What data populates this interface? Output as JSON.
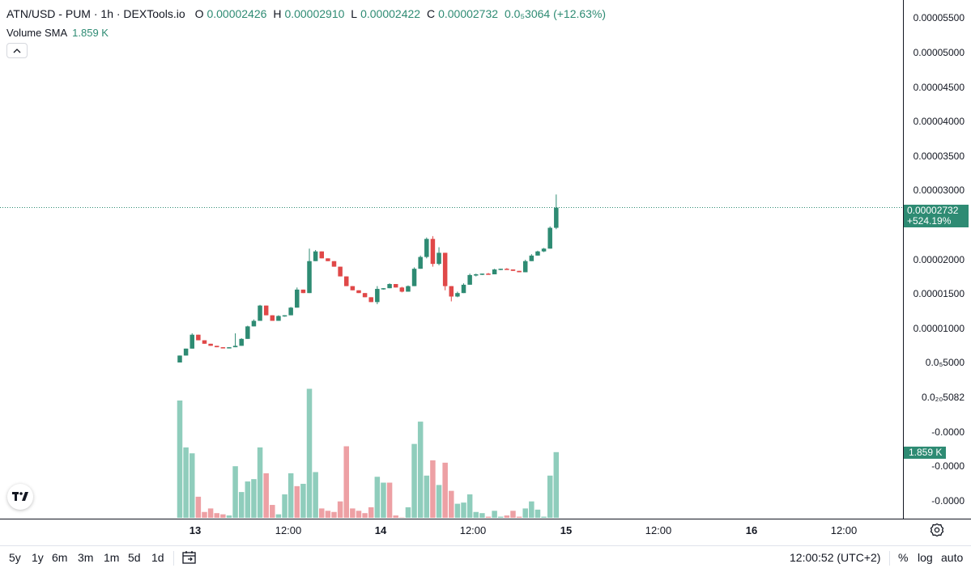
{
  "legend": {
    "title": "ATN/USD - PUM · 1h · DEXTools.io",
    "o_label": "O",
    "o_value": "0.00002426",
    "h_label": "H",
    "h_value": "0.00002910",
    "l_label": "L",
    "l_value": "0.00002422",
    "c_label": "C",
    "c_value": "0.00002732",
    "change": "0.0₅3064 (+12.63%)"
  },
  "volume_legend": {
    "label": "Volume SMA",
    "value": "1.859 K"
  },
  "price_axis": {
    "labels": [
      "0.00005500",
      "0.00005000",
      "0.00004500",
      "0.00004000",
      "0.00003500",
      "0.00003000",
      "0.00002000",
      "0.00001500",
      "0.00001000",
      "0.0₅5000",
      "0.0₂₀5082",
      "-0.0000",
      "-0.0000",
      "-0.0000"
    ],
    "last_price": "0.00002732",
    "last_change": "+524.19%",
    "volume_value": "1.859 K"
  },
  "time_axis": {
    "labels": [
      {
        "text": "13",
        "bold": true
      },
      {
        "text": "12:00",
        "bold": false
      },
      {
        "text": "14",
        "bold": true
      },
      {
        "text": "12:00",
        "bold": false
      },
      {
        "text": "15",
        "bold": true
      },
      {
        "text": "12:00",
        "bold": false
      },
      {
        "text": "16",
        "bold": true
      },
      {
        "text": "12:00",
        "bold": false
      }
    ]
  },
  "bottom_bar": {
    "ranges": [
      "5y",
      "1y",
      "6m",
      "3m",
      "1m",
      "5d",
      "1d"
    ],
    "clock": "12:00:52 (UTC+2)",
    "percent": "%",
    "log": "log",
    "auto": "auto"
  },
  "icons": {
    "logo": "tradingview-logo-icon",
    "settings": "settings-gear-icon",
    "calendar": "calendar-goto-icon",
    "collapse": "chevron-up-icon"
  },
  "colors": {
    "up": "#2e8b73",
    "down": "#e04848",
    "vol_up": "#8fcdbc",
    "vol_down": "#eda0a4",
    "accent": "#2e8b73"
  },
  "chart_data": {
    "type": "candlestick",
    "interval": "1h",
    "price_unit": "USD (×1e-5)",
    "candles": [
      {
        "o": 0.5,
        "h": 0.6,
        "l": 0.5,
        "c": 0.6
      },
      {
        "o": 0.6,
        "h": 0.7,
        "l": 0.6,
        "c": 0.7
      },
      {
        "o": 0.7,
        "h": 0.92,
        "l": 0.7,
        "c": 0.9
      },
      {
        "o": 0.9,
        "h": 0.9,
        "l": 0.82,
        "c": 0.82
      },
      {
        "o": 0.82,
        "h": 0.82,
        "l": 0.77,
        "c": 0.77
      },
      {
        "o": 0.77,
        "h": 0.77,
        "l": 0.74,
        "c": 0.74
      },
      {
        "o": 0.74,
        "h": 0.74,
        "l": 0.72,
        "c": 0.72
      },
      {
        "o": 0.72,
        "h": 0.72,
        "l": 0.71,
        "c": 0.71
      },
      {
        "o": 0.71,
        "h": 0.72,
        "l": 0.71,
        "c": 0.72
      },
      {
        "o": 0.72,
        "h": 0.92,
        "l": 0.72,
        "c": 0.74
      },
      {
        "o": 0.74,
        "h": 0.85,
        "l": 0.74,
        "c": 0.84
      },
      {
        "o": 0.84,
        "h": 1.03,
        "l": 0.84,
        "c": 1.02
      },
      {
        "o": 1.02,
        "h": 1.12,
        "l": 1.02,
        "c": 1.1
      },
      {
        "o": 1.1,
        "h": 1.33,
        "l": 1.1,
        "c": 1.32
      },
      {
        "o": 1.32,
        "h": 1.32,
        "l": 1.18,
        "c": 1.18
      },
      {
        "o": 1.18,
        "h": 1.18,
        "l": 1.1,
        "c": 1.1
      },
      {
        "o": 1.1,
        "h": 1.18,
        "l": 1.1,
        "c": 1.17
      },
      {
        "o": 1.17,
        "h": 1.18,
        "l": 1.16,
        "c": 1.18
      },
      {
        "o": 1.18,
        "h": 1.3,
        "l": 1.18,
        "c": 1.29
      },
      {
        "o": 1.29,
        "h": 1.58,
        "l": 1.29,
        "c": 1.55
      },
      {
        "o": 1.55,
        "h": 1.55,
        "l": 1.5,
        "c": 1.5
      },
      {
        "o": 1.5,
        "h": 2.14,
        "l": 1.5,
        "c": 1.96
      },
      {
        "o": 1.96,
        "h": 2.12,
        "l": 1.96,
        "c": 2.1
      },
      {
        "o": 2.1,
        "h": 2.1,
        "l": 2.0,
        "c": 2.0
      },
      {
        "o": 2.0,
        "h": 2.0,
        "l": 1.96,
        "c": 1.96
      },
      {
        "o": 1.96,
        "h": 1.96,
        "l": 1.88,
        "c": 1.88
      },
      {
        "o": 1.88,
        "h": 1.88,
        "l": 1.74,
        "c": 1.74
      },
      {
        "o": 1.74,
        "h": 1.74,
        "l": 1.6,
        "c": 1.6
      },
      {
        "o": 1.6,
        "h": 1.6,
        "l": 1.54,
        "c": 1.54
      },
      {
        "o": 1.54,
        "h": 1.54,
        "l": 1.5,
        "c": 1.5
      },
      {
        "o": 1.5,
        "h": 1.5,
        "l": 1.44,
        "c": 1.44
      },
      {
        "o": 1.44,
        "h": 1.44,
        "l": 1.37,
        "c": 1.37
      },
      {
        "o": 1.37,
        "h": 1.6,
        "l": 1.34,
        "c": 1.56
      },
      {
        "o": 1.56,
        "h": 1.57,
        "l": 1.55,
        "c": 1.57
      },
      {
        "o": 1.57,
        "h": 1.64,
        "l": 1.57,
        "c": 1.63
      },
      {
        "o": 1.63,
        "h": 1.63,
        "l": 1.58,
        "c": 1.58
      },
      {
        "o": 1.58,
        "h": 1.59,
        "l": 1.51,
        "c": 1.52
      },
      {
        "o": 1.52,
        "h": 1.61,
        "l": 1.52,
        "c": 1.6
      },
      {
        "o": 1.6,
        "h": 1.87,
        "l": 1.6,
        "c": 1.85
      },
      {
        "o": 1.85,
        "h": 2.04,
        "l": 1.85,
        "c": 2.02
      },
      {
        "o": 2.02,
        "h": 2.3,
        "l": 2.0,
        "c": 2.28
      },
      {
        "o": 2.28,
        "h": 2.32,
        "l": 1.88,
        "c": 1.92
      },
      {
        "o": 1.92,
        "h": 2.16,
        "l": 1.9,
        "c": 2.08
      },
      {
        "o": 2.08,
        "h": 2.08,
        "l": 1.54,
        "c": 1.6
      },
      {
        "o": 1.6,
        "h": 1.6,
        "l": 1.38,
        "c": 1.45
      },
      {
        "o": 1.45,
        "h": 1.52,
        "l": 1.44,
        "c": 1.5
      },
      {
        "o": 1.5,
        "h": 1.64,
        "l": 1.5,
        "c": 1.62
      },
      {
        "o": 1.62,
        "h": 1.78,
        "l": 1.62,
        "c": 1.76
      },
      {
        "o": 1.76,
        "h": 1.78,
        "l": 1.74,
        "c": 1.77
      },
      {
        "o": 1.77,
        "h": 1.78,
        "l": 1.76,
        "c": 1.78
      },
      {
        "o": 1.78,
        "h": 1.79,
        "l": 1.77,
        "c": 1.77
      },
      {
        "o": 1.77,
        "h": 1.85,
        "l": 1.77,
        "c": 1.84
      },
      {
        "o": 1.84,
        "h": 1.85,
        "l": 1.83,
        "c": 1.85
      },
      {
        "o": 1.85,
        "h": 1.86,
        "l": 1.84,
        "c": 1.84
      },
      {
        "o": 1.84,
        "h": 1.84,
        "l": 1.82,
        "c": 1.82
      },
      {
        "o": 1.82,
        "h": 1.82,
        "l": 1.8,
        "c": 1.8
      },
      {
        "o": 1.8,
        "h": 1.98,
        "l": 1.8,
        "c": 1.96
      },
      {
        "o": 1.96,
        "h": 2.06,
        "l": 1.96,
        "c": 2.04
      },
      {
        "o": 2.04,
        "h": 2.11,
        "l": 2.04,
        "c": 2.1
      },
      {
        "o": 2.1,
        "h": 2.15,
        "l": 2.09,
        "c": 2.14
      },
      {
        "o": 2.14,
        "h": 2.46,
        "l": 2.14,
        "c": 2.44
      },
      {
        "o": 2.44,
        "h": 2.92,
        "l": 2.42,
        "c": 2.73
      }
    ],
    "volumes": [
      {
        "v": 1.0,
        "up": true
      },
      {
        "v": 0.6,
        "up": true
      },
      {
        "v": 0.55,
        "up": true
      },
      {
        "v": 0.18,
        "up": false
      },
      {
        "v": 0.05,
        "up": false
      },
      {
        "v": 0.08,
        "up": false
      },
      {
        "v": 0.04,
        "up": false
      },
      {
        "v": 0.03,
        "up": false
      },
      {
        "v": 0.02,
        "up": true
      },
      {
        "v": 0.44,
        "up": true
      },
      {
        "v": 0.22,
        "up": true
      },
      {
        "v": 0.31,
        "up": true
      },
      {
        "v": 0.33,
        "up": true
      },
      {
        "v": 0.6,
        "up": true
      },
      {
        "v": 0.38,
        "up": false
      },
      {
        "v": 0.11,
        "up": false
      },
      {
        "v": 0.03,
        "up": true
      },
      {
        "v": 0.2,
        "up": true
      },
      {
        "v": 0.38,
        "up": true
      },
      {
        "v": 0.27,
        "up": false
      },
      {
        "v": 0.29,
        "up": true
      },
      {
        "v": 1.1,
        "up": true
      },
      {
        "v": 0.39,
        "up": true
      },
      {
        "v": 0.08,
        "up": false
      },
      {
        "v": 0.06,
        "up": false
      },
      {
        "v": 0.05,
        "up": false
      },
      {
        "v": 0.14,
        "up": false
      },
      {
        "v": 0.61,
        "up": false
      },
      {
        "v": 0.08,
        "up": false
      },
      {
        "v": 0.06,
        "up": false
      },
      {
        "v": 0.04,
        "up": false
      },
      {
        "v": 0.09,
        "up": false
      },
      {
        "v": 0.35,
        "up": true
      },
      {
        "v": 0.3,
        "up": true
      },
      {
        "v": 0.3,
        "up": false
      },
      {
        "v": 0.02,
        "up": false
      },
      {
        "v": 0.0,
        "up": false
      },
      {
        "v": 0.09,
        "up": true
      },
      {
        "v": 0.63,
        "up": true
      },
      {
        "v": 0.82,
        "up": true
      },
      {
        "v": 0.36,
        "up": true
      },
      {
        "v": 0.49,
        "up": false
      },
      {
        "v": 0.28,
        "up": true
      },
      {
        "v": 0.47,
        "up": false
      },
      {
        "v": 0.23,
        "up": false
      },
      {
        "v": 0.12,
        "up": true
      },
      {
        "v": 0.13,
        "up": true
      },
      {
        "v": 0.2,
        "up": true
      },
      {
        "v": 0.05,
        "up": true
      },
      {
        "v": 0.04,
        "up": true
      },
      {
        "v": 0.01,
        "up": false
      },
      {
        "v": 0.06,
        "up": true
      },
      {
        "v": 0.01,
        "up": true
      },
      {
        "v": 0.02,
        "up": false
      },
      {
        "v": 0.06,
        "up": false
      },
      {
        "v": 0.01,
        "up": false
      },
      {
        "v": 0.08,
        "up": true
      },
      {
        "v": 0.14,
        "up": true
      },
      {
        "v": 0.07,
        "up": true
      },
      {
        "v": 0.01,
        "up": true
      },
      {
        "v": 0.36,
        "up": true
      },
      {
        "v": 0.56,
        "up": true
      }
    ],
    "last_price": 2.732,
    "title": "ATN/USD - PUM · 1h · DEXTools.io"
  }
}
